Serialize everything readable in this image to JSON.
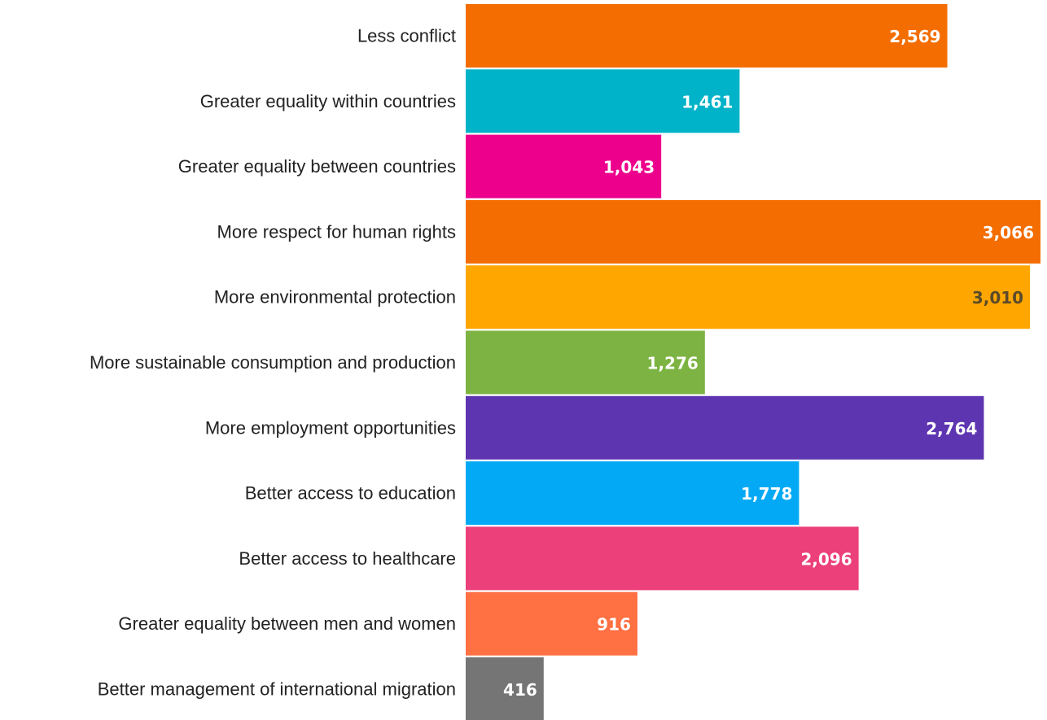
{
  "chart_data": {
    "type": "bar",
    "orientation": "horizontal",
    "title": "",
    "xlabel": "",
    "ylabel": "",
    "categories": [
      "Less conflict",
      "Greater equality within countries",
      "Greater equality between countries",
      "More respect for human rights",
      "More environmental protection",
      "More sustainable consumption and production",
      "More employment opportunities",
      "Better access to education",
      "Better access to healthcare",
      "Greater equality between men and women",
      "Better management of international migration"
    ],
    "values": [
      2569,
      1461,
      1043,
      3066,
      3010,
      1276,
      2764,
      1778,
      2096,
      916,
      416
    ],
    "value_labels": [
      "2,569",
      "1,461",
      "1,043",
      "3,066",
      "3,010",
      "1,276",
      "2,764",
      "1,778",
      "2,096",
      "916",
      "416"
    ],
    "colors": [
      "#f46d00",
      "#00b3c8",
      "#ec008c",
      "#f46d00",
      "#ffa700",
      "#7cb342",
      "#5e35b1",
      "#03a9f4",
      "#ec407a",
      "#ff7043",
      "#757575"
    ],
    "label_colors": [
      "#ffffff",
      "#ffffff",
      "#ffffff",
      "#ffffff",
      "#5a4a2a",
      "#ffffff",
      "#ffffff",
      "#ffffff",
      "#ffffff",
      "#ffffff",
      "#ffffff"
    ],
    "xlim": [
      0,
      3066
    ],
    "grid": false,
    "legend": "none"
  }
}
